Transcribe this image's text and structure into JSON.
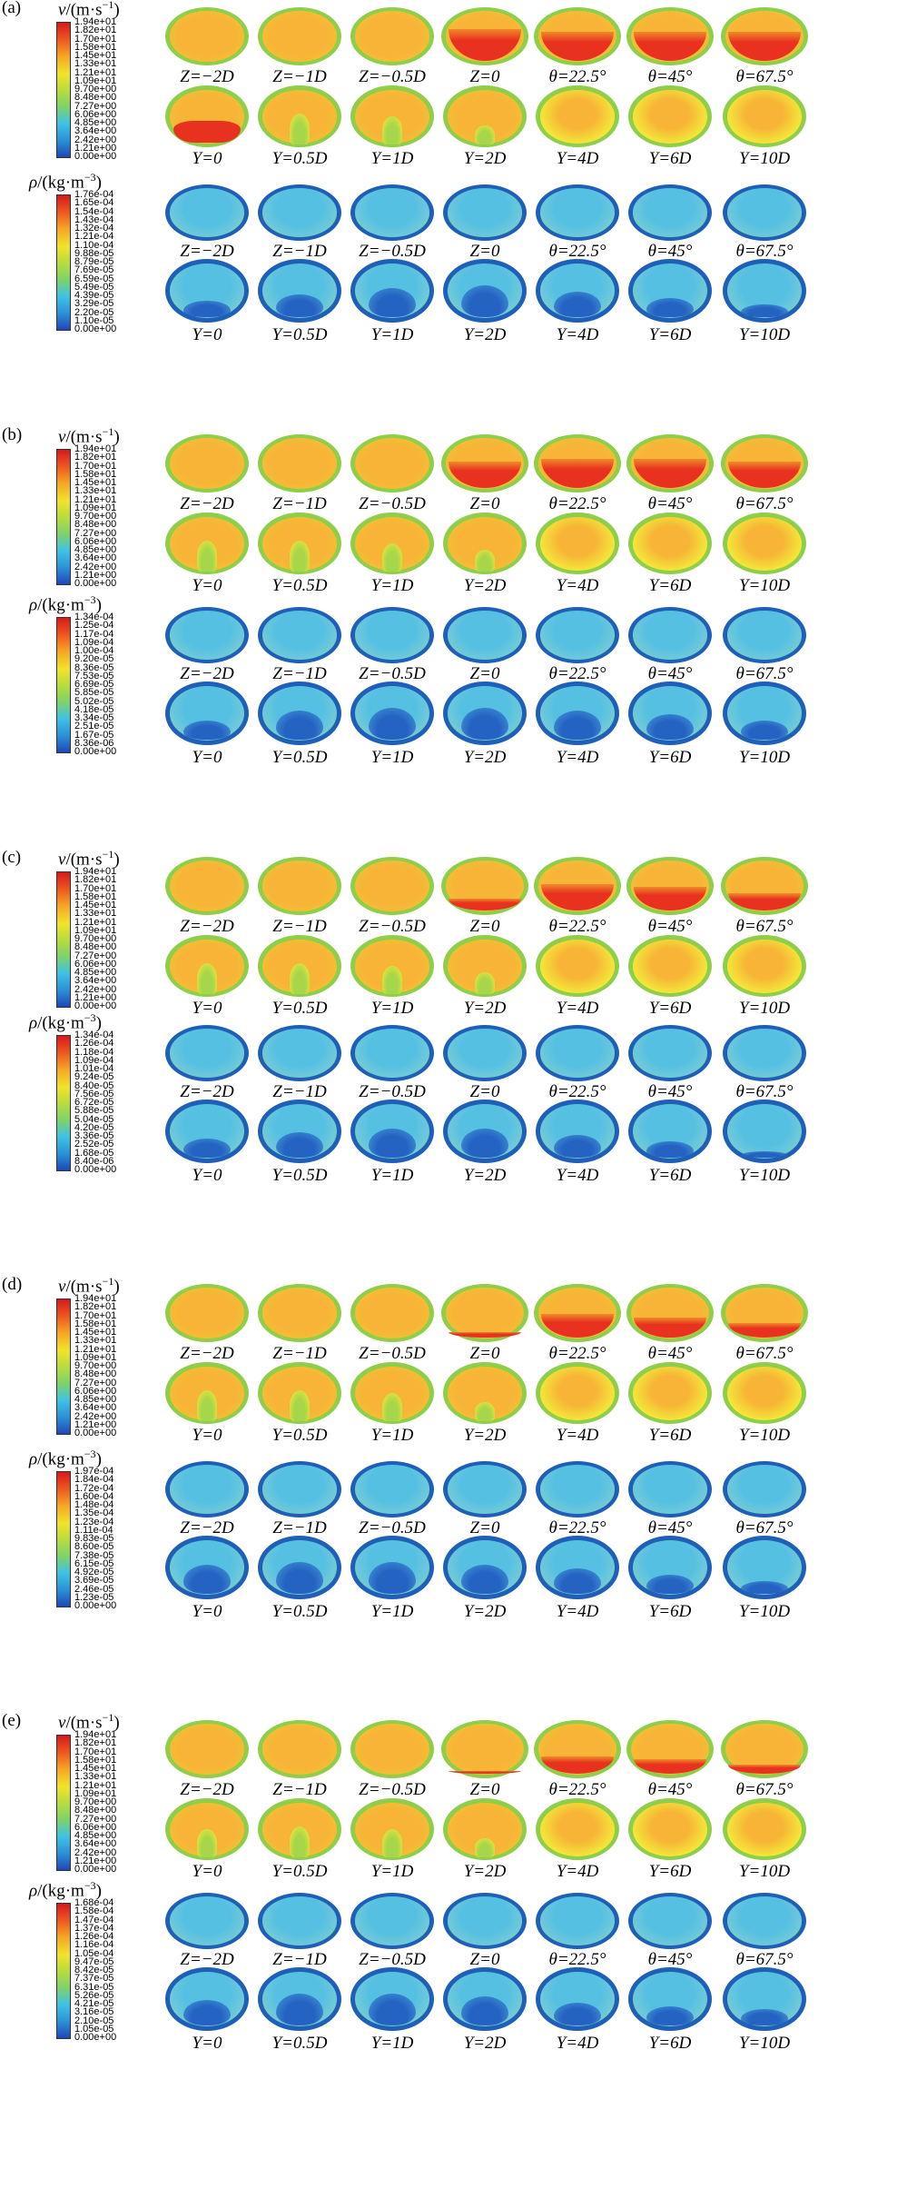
{
  "labels": {
    "row1": [
      "Z=−2D",
      "Z=−1D",
      "Z=−0.5D",
      "Z=0",
      "θ=22.5°",
      "θ=45°",
      "θ=67.5°"
    ],
    "row2": [
      "Y=0",
      "Y=0.5D",
      "Y=1D",
      "Y=2D",
      "Y=4D",
      "Y=6D",
      "Y=10D"
    ]
  },
  "colors": {
    "scale": [
      "#1f47b8",
      "#2a8fd6",
      "#3ec3e6",
      "#7ad36a",
      "#b9dc3c",
      "#f2e32b",
      "#f6a623",
      "#ee5a1f",
      "#d7191c"
    ],
    "velocity": {
      "edge": "#8fce4a",
      "body": "#f7b436",
      "hot": "#e8321f",
      "yellow": "#f4e639",
      "green": "#a6d64a"
    },
    "density": {
      "edge": "#1f5fb8",
      "body": "#56c0e2",
      "dark": "#2563c3",
      "green": "#a8d35a"
    }
  },
  "panels": [
    {
      "id": "a",
      "letter": "(a)",
      "velocity": {
        "title_symbol": "v",
        "title_unit": "/(m·s",
        "title_sup": "−1",
        "title_close": ")",
        "ticks": [
          "1.94e+01",
          "1.82e+01",
          "1.70e+01",
          "1.58e+01",
          "1.45e+01",
          "1.33e+01",
          "1.21e+01",
          "1.09e+01",
          "9.70e+00",
          "8.48e+00",
          "7.27e+00",
          "6.06e+00",
          "4.85e+00",
          "3.64e+00",
          "2.42e+00",
          "1.21e+00",
          "0.00e+00"
        ],
        "hot_row1": [
          0,
          0,
          0,
          0.55,
          0.5,
          0.5,
          0.5
        ],
        "stem_row2": [
          0,
          0.5,
          0.45,
          0.3,
          0,
          0,
          0
        ],
        "hot_row2": [
          0.35,
          0,
          0,
          0,
          0,
          0,
          0
        ]
      },
      "density": {
        "title_symbol": "ρ",
        "title_unit": "/(kg·m",
        "title_sup": "−3",
        "title_close": ")",
        "ticks": [
          "1.76e-04",
          "1.65e-04",
          "1.54e-04",
          "1.43e-04",
          "1.32e-04",
          "1.21e-04",
          "1.10e-04",
          "9.88e-05",
          "8.79e-05",
          "7.69e-05",
          "6.59e-05",
          "5.49e-05",
          "4.39e-05",
          "3.29e-05",
          "2.20e-05",
          "1.10e-05",
          "0.00e+00"
        ],
        "dark_row2": [
          0.25,
          0.35,
          0.45,
          0.5,
          0.4,
          0.3,
          0.2
        ]
      }
    },
    {
      "id": "b",
      "letter": "(b)",
      "velocity": {
        "title_symbol": "v",
        "title_unit": "/(m·s",
        "title_sup": "−1",
        "title_close": ")",
        "ticks": [
          "1.94e+01",
          "1.82e+01",
          "1.70e+01",
          "1.58e+01",
          "1.45e+01",
          "1.33e+01",
          "1.21e+01",
          "1.09e+01",
          "9.70e+00",
          "8.48e+00",
          "7.27e+00",
          "6.06e+00",
          "4.85e+00",
          "3.64e+00",
          "2.42e+00",
          "1.21e+00",
          "0.00e+00"
        ],
        "hot_row1": [
          0,
          0,
          0,
          0.45,
          0.5,
          0.5,
          0.45
        ],
        "stem_row2": [
          0.5,
          0.5,
          0.45,
          0.35,
          0,
          0,
          0
        ],
        "hot_row2": [
          0,
          0,
          0,
          0,
          0,
          0,
          0
        ]
      },
      "density": {
        "title_symbol": "ρ",
        "title_unit": "/(kg·m",
        "title_sup": "−3",
        "title_close": ")",
        "ticks": [
          "1.34e-04",
          "1.25e-04",
          "1.17e-04",
          "1.09e-04",
          "1.00e-04",
          "9.20e-05",
          "8.36e-05",
          "7.53e-05",
          "6.69e-05",
          "5.85e-05",
          "5.02e-05",
          "4.18e-05",
          "3.34e-05",
          "2.51e-05",
          "1.67e-05",
          "8.36e-06",
          "0.00e+00"
        ],
        "dark_row2": [
          0.3,
          0.45,
          0.5,
          0.5,
          0.45,
          0.4,
          0.3
        ]
      }
    },
    {
      "id": "c",
      "letter": "(c)",
      "velocity": {
        "title_symbol": "v",
        "title_unit": "/(m·s",
        "title_sup": "−1",
        "title_close": ")",
        "ticks": [
          "1.94e+01",
          "1.82e+01",
          "1.70e+01",
          "1.58e+01",
          "1.45e+01",
          "1.33e+01",
          "1.21e+01",
          "1.09e+01",
          "9.70e+00",
          "8.48e+00",
          "7.27e+00",
          "6.06e+00",
          "4.85e+00",
          "3.64e+00",
          "2.42e+00",
          "1.21e+00",
          "0.00e+00"
        ],
        "hot_row1": [
          0,
          0,
          0,
          0.2,
          0.45,
          0.4,
          0.3
        ],
        "stem_row2": [
          0.5,
          0.5,
          0.45,
          0.35,
          0,
          0,
          0
        ],
        "hot_row2": [
          0,
          0,
          0,
          0,
          0,
          0,
          0
        ]
      },
      "density": {
        "title_symbol": "ρ",
        "title_unit": "/(kg·m",
        "title_sup": "−3",
        "title_close": ")",
        "ticks": [
          "1.34e-04",
          "1.26e-04",
          "1.18e-04",
          "1.09e-04",
          "1.01e-04",
          "9.24e-05",
          "8.40e-05",
          "7.56e-05",
          "6.72e-05",
          "5.88e-05",
          "5.04e-05",
          "4.20e-05",
          "3.36e-05",
          "2.52e-05",
          "1.68e-05",
          "8.40e-06",
          "0.00e+00"
        ],
        "dark_row2": [
          0.3,
          0.4,
          0.45,
          0.45,
          0.35,
          0.25,
          0.1
        ]
      }
    },
    {
      "id": "d",
      "letter": "(d)",
      "velocity": {
        "title_symbol": "v",
        "title_unit": "/(m·s",
        "title_sup": "−1",
        "title_close": ")",
        "ticks": [
          "1.94e+01",
          "1.82e+01",
          "1.70e+01",
          "1.58e+01",
          "1.45e+01",
          "1.33e+01",
          "1.21e+01",
          "1.09e+01",
          "9.70e+00",
          "8.48e+00",
          "7.27e+00",
          "6.06e+00",
          "4.85e+00",
          "3.64e+00",
          "2.42e+00",
          "1.21e+00",
          "0.00e+00"
        ],
        "hot_row1": [
          0,
          0,
          0,
          0.1,
          0.4,
          0.35,
          0.25
        ],
        "stem_row2": [
          0.5,
          0.5,
          0.45,
          0.3,
          0,
          0,
          0
        ],
        "hot_row2": [
          0,
          0,
          0,
          0,
          0,
          0,
          0
        ]
      },
      "density": {
        "title_symbol": "ρ",
        "title_unit": "/(kg·m",
        "title_sup": "−3",
        "title_close": ")",
        "ticks": [
          "1.97e-04",
          "1.84e-04",
          "1.72e-04",
          "1.60e-04",
          "1.48e-04",
          "1.35e-04",
          "1.23e-04",
          "1.11e-04",
          "9.83e-05",
          "8.60e-05",
          "7.38e-05",
          "6.15e-05",
          "4.92e-05",
          "3.69e-05",
          "2.46e-05",
          "1.23e-05",
          "0.00e+00"
        ],
        "dark_row2": [
          0.45,
          0.5,
          0.5,
          0.45,
          0.4,
          0.3,
          0.2
        ]
      }
    },
    {
      "id": "e",
      "letter": "(e)",
      "velocity": {
        "title_symbol": "v",
        "title_unit": "/(m·s",
        "title_sup": "−1",
        "title_close": ")",
        "ticks": [
          "1.94e+01",
          "1.82e+01",
          "1.70e+01",
          "1.58e+01",
          "1.45e+01",
          "1.33e+01",
          "1.21e+01",
          "1.09e+01",
          "9.70e+00",
          "8.48e+00",
          "7.27e+00",
          "6.06e+00",
          "4.85e+00",
          "3.64e+00",
          "2.42e+00",
          "1.21e+00",
          "0.00e+00"
        ],
        "hot_row1": [
          0,
          0,
          0,
          0.05,
          0.3,
          0.25,
          0.15
        ],
        "stem_row2": [
          0.45,
          0.5,
          0.45,
          0.3,
          0,
          0,
          0
        ],
        "hot_row2": [
          0,
          0,
          0,
          0,
          0,
          0,
          0
        ]
      },
      "density": {
        "title_symbol": "ρ",
        "title_unit": "/(kg·m",
        "title_sup": "−3",
        "title_close": ")",
        "ticks": [
          "1.68e-04",
          "1.58e-04",
          "1.47e-04",
          "1.37e-04",
          "1.26e-04",
          "1.16e-04",
          "1.05e-04",
          "9.47e-05",
          "8.42e-05",
          "7.37e-05",
          "6.31e-05",
          "5.26e-05",
          "4.21e-05",
          "3.16e-05",
          "2.10e-05",
          "1.05e-05",
          "0.00e+00"
        ],
        "dark_row2": [
          0.4,
          0.5,
          0.5,
          0.45,
          0.35,
          0.3,
          0.25
        ]
      }
    }
  ]
}
